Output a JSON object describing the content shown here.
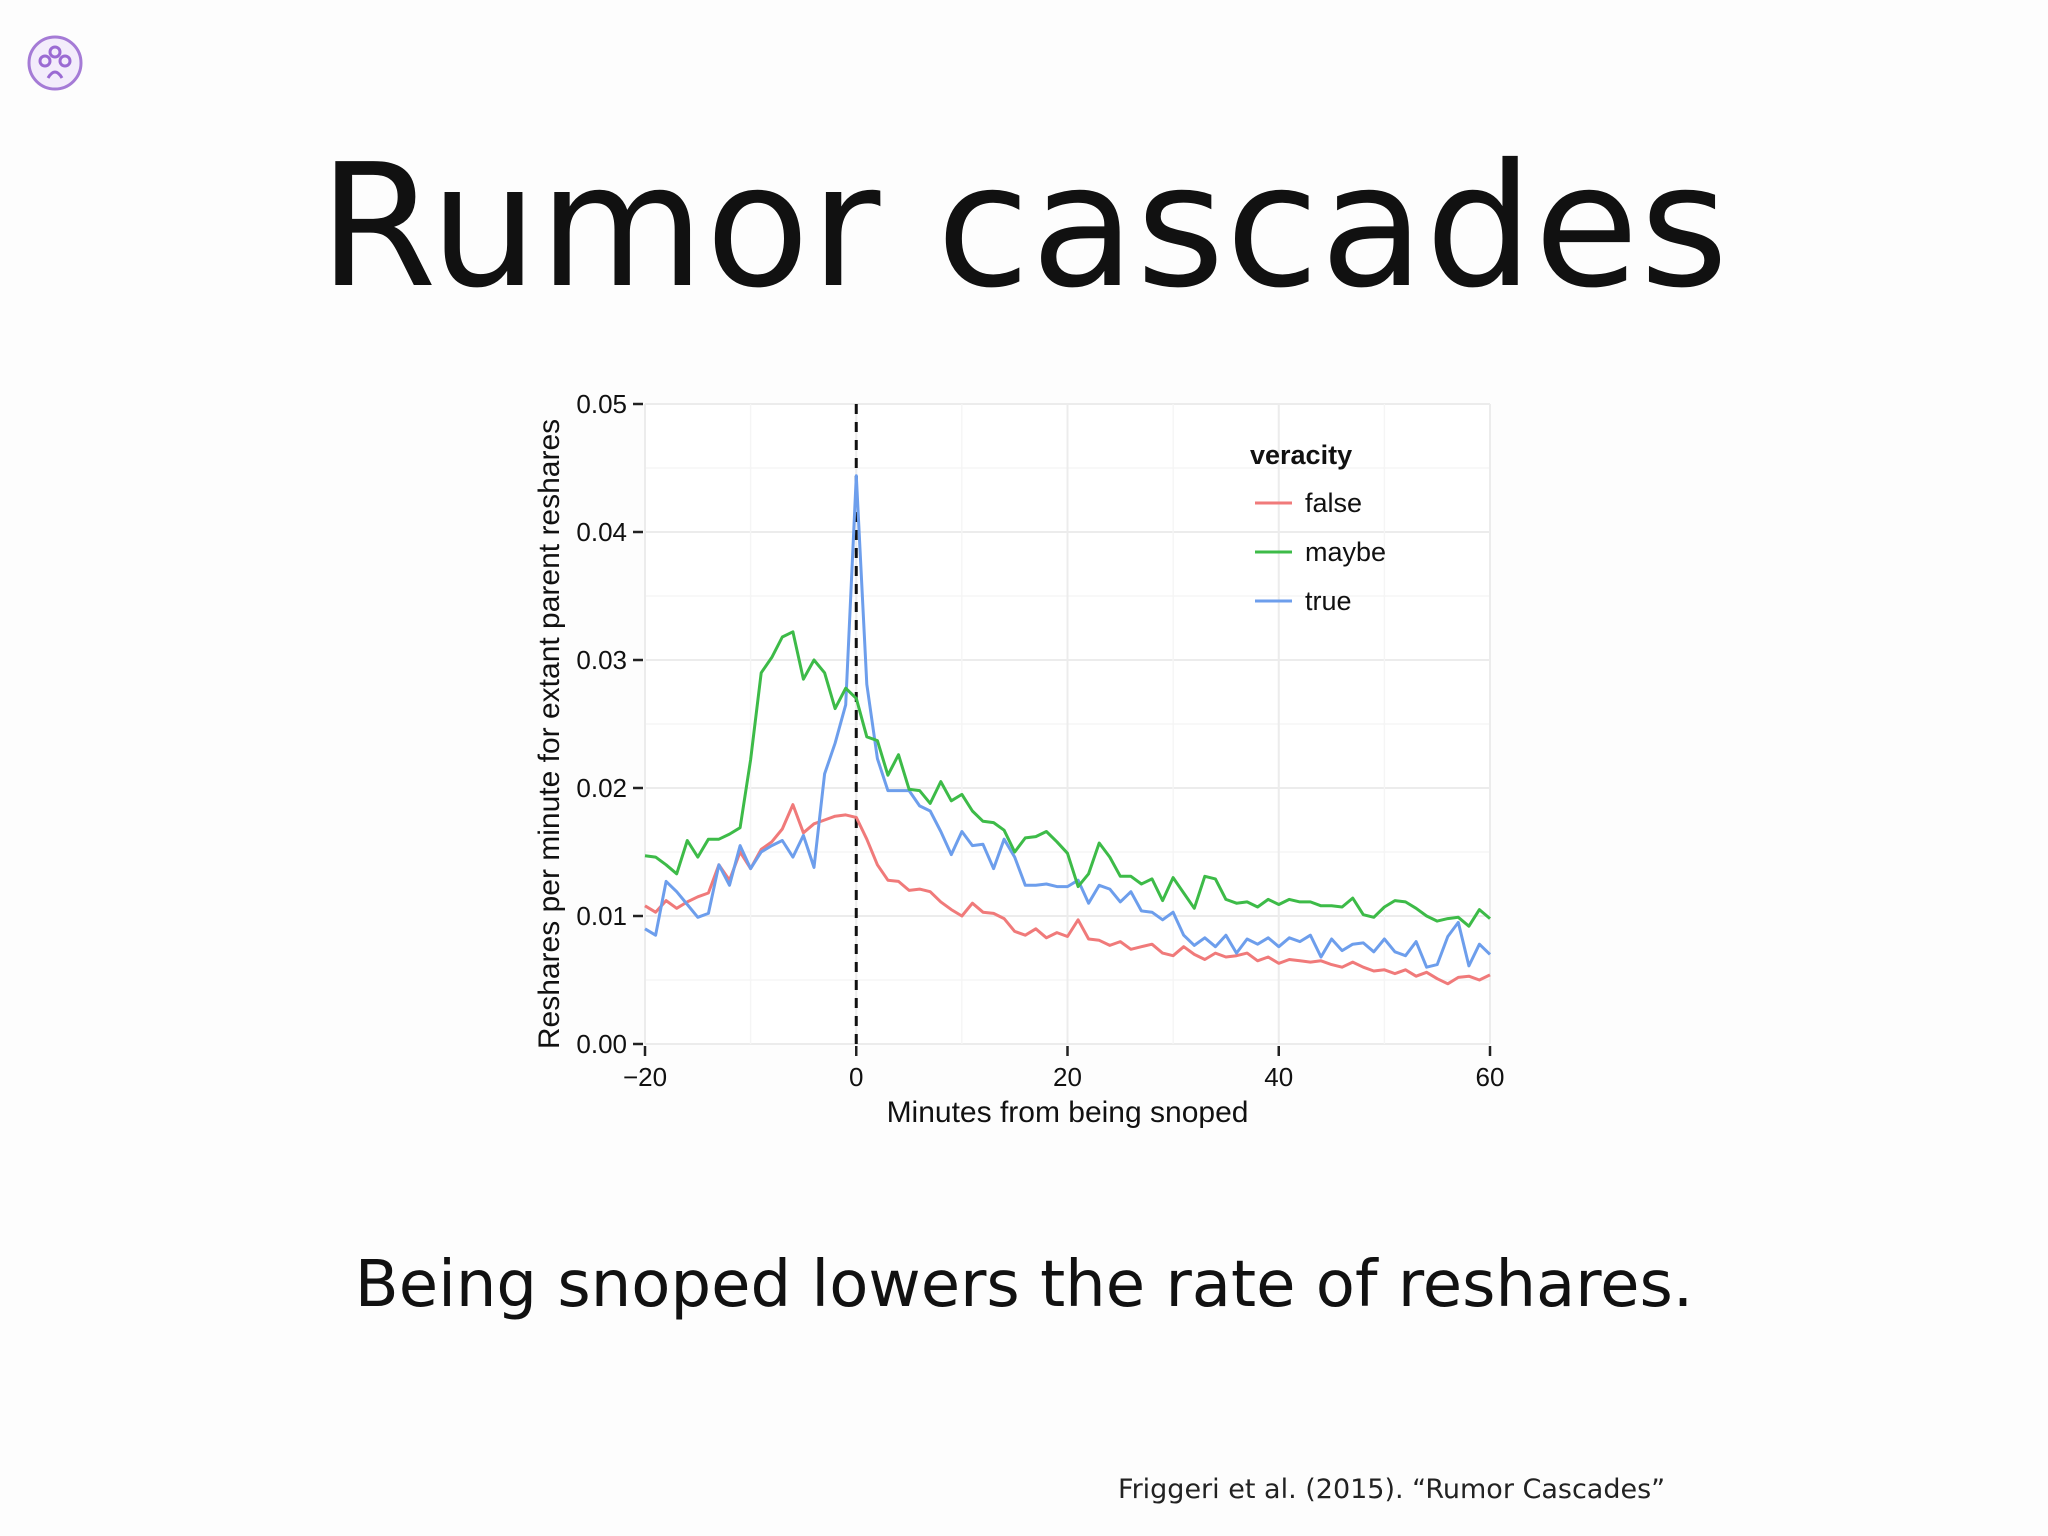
{
  "slide": {
    "title": "Rumor cascades",
    "subtitle": "Being snoped lowers the rate of reshares.",
    "citation": "Friggeri et al. (2015). “Rumor Cascades”",
    "logo_icon": "emblem-icon"
  },
  "chart_data": {
    "type": "line",
    "title": "",
    "xlabel": "Minutes from being snoped",
    "ylabel": "Reshares per minute for extant parent reshares",
    "xlim": [
      -20,
      60
    ],
    "ylim": [
      0,
      0.05
    ],
    "xticks": [
      -20,
      0,
      20,
      40,
      60
    ],
    "xtick_labels": [
      "−20",
      "0",
      "20",
      "40",
      "60"
    ],
    "yticks": [
      0,
      0.01,
      0.02,
      0.03,
      0.04,
      0.05
    ],
    "ytick_labels": [
      "0.00",
      "0.01",
      "0.02",
      "0.03",
      "0.04",
      "0.05"
    ],
    "grid": true,
    "vline": {
      "x": 0,
      "style": "dashed",
      "color": "#111111"
    },
    "legend": {
      "title": "veracity",
      "position": "top-right"
    },
    "x": [
      -20,
      -19,
      -18,
      -17,
      -16,
      -15,
      -14,
      -13,
      -12,
      -11,
      -10,
      -9,
      -8,
      -7,
      -6,
      -5,
      -4,
      -3,
      -2,
      -1,
      0,
      1,
      2,
      3,
      4,
      5,
      6,
      7,
      8,
      9,
      10,
      11,
      12,
      13,
      14,
      15,
      16,
      17,
      18,
      19,
      20,
      21,
      22,
      23,
      24,
      25,
      26,
      27,
      28,
      29,
      30,
      31,
      32,
      33,
      34,
      35,
      36,
      37,
      38,
      39,
      40,
      41,
      42,
      43,
      44,
      45,
      46,
      47,
      48,
      49,
      50,
      51,
      52,
      53,
      54,
      55,
      56,
      57,
      58,
      59,
      60
    ],
    "series": [
      {
        "name": "false",
        "color": "#f07a7a",
        "values": [
          0.0108,
          0.0103,
          0.0112,
          0.0106,
          0.0111,
          0.0115,
          0.0118,
          0.014,
          0.0128,
          0.015,
          0.0137,
          0.0152,
          0.0158,
          0.0168,
          0.0187,
          0.0165,
          0.0172,
          0.0175,
          0.0178,
          0.0179,
          0.0177,
          0.016,
          0.014,
          0.0128,
          0.0127,
          0.012,
          0.0121,
          0.0119,
          0.0111,
          0.0105,
          0.01,
          0.011,
          0.0103,
          0.0102,
          0.0098,
          0.0088,
          0.0085,
          0.009,
          0.0083,
          0.0087,
          0.0084,
          0.0097,
          0.0082,
          0.0081,
          0.0077,
          0.008,
          0.0074,
          0.0076,
          0.0078,
          0.0071,
          0.0069,
          0.0076,
          0.007,
          0.0066,
          0.0071,
          0.0068,
          0.0069,
          0.0071,
          0.0065,
          0.0068,
          0.0063,
          0.0066,
          0.0065,
          0.0064,
          0.0065,
          0.0062,
          0.006,
          0.0064,
          0.006,
          0.0057,
          0.0058,
          0.0055,
          0.0058,
          0.0053,
          0.0056,
          0.0051,
          0.0047,
          0.0052,
          0.0053,
          0.005,
          0.0054
        ]
      },
      {
        "name": "maybe",
        "color": "#3dbb48",
        "values": [
          0.0147,
          0.0146,
          0.014,
          0.0133,
          0.0159,
          0.0146,
          0.016,
          0.016,
          0.0164,
          0.0169,
          0.0222,
          0.029,
          0.0302,
          0.0318,
          0.0322,
          0.0285,
          0.03,
          0.029,
          0.0262,
          0.0278,
          0.027,
          0.024,
          0.0237,
          0.021,
          0.0226,
          0.0199,
          0.0198,
          0.0188,
          0.0205,
          0.019,
          0.0195,
          0.0182,
          0.0174,
          0.0173,
          0.0167,
          0.015,
          0.0161,
          0.0162,
          0.0166,
          0.0158,
          0.0149,
          0.0123,
          0.0133,
          0.0157,
          0.0146,
          0.0131,
          0.0131,
          0.0125,
          0.0129,
          0.0112,
          0.013,
          0.0118,
          0.0106,
          0.0131,
          0.0129,
          0.0113,
          0.011,
          0.0111,
          0.0107,
          0.0113,
          0.0109,
          0.0113,
          0.0111,
          0.0111,
          0.0108,
          0.0108,
          0.0107,
          0.0114,
          0.0101,
          0.0099,
          0.0107,
          0.0112,
          0.0111,
          0.0106,
          0.01,
          0.0096,
          0.0098,
          0.0099,
          0.0092,
          0.0105,
          0.0098
        ]
      },
      {
        "name": "true",
        "color": "#6d9eec",
        "values": [
          0.009,
          0.0085,
          0.0127,
          0.0119,
          0.0109,
          0.0099,
          0.0102,
          0.014,
          0.0124,
          0.0155,
          0.0137,
          0.015,
          0.0155,
          0.0159,
          0.0146,
          0.0163,
          0.0138,
          0.0211,
          0.0235,
          0.0265,
          0.0444,
          0.0281,
          0.0223,
          0.0198,
          0.0198,
          0.0198,
          0.0186,
          0.0182,
          0.0166,
          0.0148,
          0.0166,
          0.0155,
          0.0156,
          0.0137,
          0.016,
          0.0146,
          0.0124,
          0.0124,
          0.0125,
          0.0123,
          0.0123,
          0.0128,
          0.011,
          0.0124,
          0.0121,
          0.0111,
          0.0119,
          0.0104,
          0.0103,
          0.0097,
          0.0103,
          0.0085,
          0.0077,
          0.0083,
          0.0076,
          0.0085,
          0.0071,
          0.0082,
          0.0078,
          0.0083,
          0.0076,
          0.0083,
          0.008,
          0.0085,
          0.0068,
          0.0082,
          0.0073,
          0.0078,
          0.0079,
          0.0072,
          0.0082,
          0.0072,
          0.0069,
          0.008,
          0.006,
          0.0062,
          0.0084,
          0.0095,
          0.0061,
          0.0078,
          0.007
        ]
      }
    ]
  }
}
